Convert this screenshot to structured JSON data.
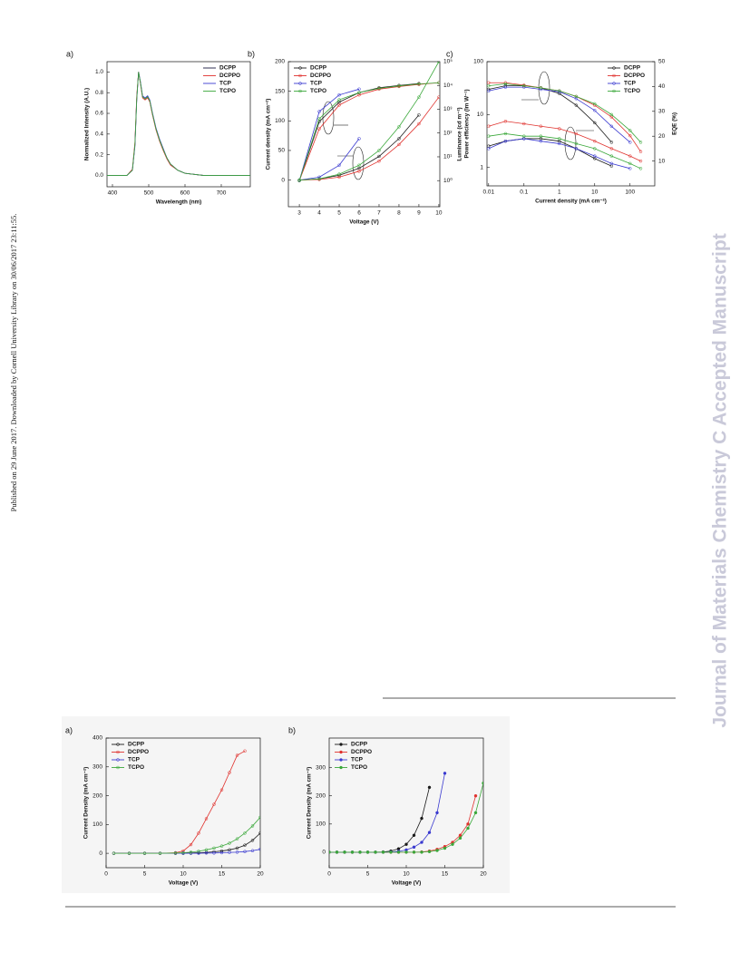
{
  "side_note": "Published on 29 June 2017. Downloaded by Cornell University Library on 30/06/2017 23:11:55.",
  "watermark": "Journal of Materials Chemistry C Accepted Manuscript",
  "chart_data": [
    {
      "type": "line",
      "label": "a)",
      "xlabel": "Wavelength (nm)",
      "ylabel": "Normalized Intensity (A.U.)",
      "xlim": [
        385,
        780
      ],
      "xticks": [
        400,
        500,
        600,
        700
      ],
      "ylim": [
        -0.11,
        1.1
      ],
      "yticks": [
        {
          "value": 0,
          "label": "0.0"
        },
        0.2,
        0.4,
        0.6,
        0.8,
        {
          "value": 1,
          "label": "1.0"
        }
      ],
      "marker": "none",
      "legend": "upper right",
      "x": [
        385,
        440,
        455,
        462,
        467,
        472,
        477,
        483,
        490,
        497,
        503,
        510,
        520,
        530,
        540,
        550,
        560,
        580,
        600,
        650,
        700,
        780
      ],
      "series": [
        {
          "name": "DCPP",
          "color": "#1a1a40",
          "values": [
            0,
            0,
            0.05,
            0.3,
            0.75,
            1.0,
            0.9,
            0.76,
            0.74,
            0.76,
            0.72,
            0.6,
            0.45,
            0.34,
            0.25,
            0.17,
            0.11,
            0.05,
            0.02,
            0,
            0,
            0
          ]
        },
        {
          "name": "DCPPO",
          "color": "#e0322e",
          "values": [
            0,
            0,
            0.06,
            0.32,
            0.77,
            1.0,
            0.89,
            0.75,
            0.73,
            0.75,
            0.71,
            0.59,
            0.44,
            0.33,
            0.24,
            0.16,
            0.1,
            0.05,
            0.02,
            0,
            0,
            0
          ]
        },
        {
          "name": "TCP",
          "color": "#3a3ad0",
          "values": [
            0,
            0,
            0.05,
            0.28,
            0.73,
            1.0,
            0.91,
            0.77,
            0.75,
            0.77,
            0.73,
            0.61,
            0.46,
            0.35,
            0.26,
            0.17,
            0.11,
            0.05,
            0.02,
            0,
            0,
            0
          ]
        },
        {
          "name": "TCPO",
          "color": "#3aa83a",
          "values": [
            0,
            0,
            0.05,
            0.3,
            0.74,
            1.0,
            0.9,
            0.76,
            0.74,
            0.76,
            0.72,
            0.6,
            0.45,
            0.34,
            0.25,
            0.17,
            0.11,
            0.05,
            0.02,
            0,
            0,
            0
          ]
        }
      ]
    },
    {
      "type": "line",
      "label": "b)",
      "xlabel": "Voltage (V)",
      "ylabel": "Current density (mA cm⁻²)",
      "y2label": "Luminance (cd m⁻²)",
      "xlim": [
        2.45,
        10.05
      ],
      "xticks": [
        3,
        4,
        5,
        6,
        7,
        8,
        9,
        10
      ],
      "ylim": [
        -45,
        200
      ],
      "yticks": [
        0,
        50,
        100,
        150,
        200
      ],
      "y2lim": [
        0.08,
        100000
      ],
      "y2scale": "log",
      "y2ticks": [
        {
          "value": 1,
          "label": "10⁰"
        },
        {
          "value": 10,
          "label": "10¹"
        },
        {
          "value": 100,
          "label": "10²"
        },
        {
          "value": 1000,
          "label": "10³"
        },
        {
          "value": 10000,
          "label": "10⁴"
        },
        {
          "value": 100000,
          "label": "10⁵"
        }
      ],
      "marker": "open",
      "legend": "upper left",
      "x": [
        3,
        4,
        5,
        6,
        7,
        8,
        9,
        10
      ],
      "series": [
        {
          "name": "DCPP",
          "color": "#1a1a1a",
          "values": [
            0,
            2,
            8,
            20,
            40,
            70,
            110,
            null
          ],
          "y2_values": [
            1,
            300,
            2000,
            5000,
            8000,
            10000,
            12000,
            null
          ]
        },
        {
          "name": "DCPPO",
          "color": "#e0322e",
          "values": [
            0,
            1,
            5,
            15,
            32,
            60,
            95,
            140
          ],
          "y2_values": [
            1,
            150,
            1500,
            4000,
            7000,
            9000,
            11000,
            13000
          ]
        },
        {
          "name": "TCP",
          "color": "#3a3ad0",
          "values": [
            0,
            5,
            25,
            70,
            null,
            null,
            null,
            null
          ],
          "y2_values": [
            1,
            800,
            4000,
            7000,
            null,
            null,
            null,
            null
          ]
        },
        {
          "name": "TCPO",
          "color": "#3aa83a",
          "values": [
            0,
            2,
            10,
            25,
            50,
            90,
            140,
            200
          ],
          "y2_values": [
            1,
            400,
            2500,
            5000,
            7500,
            9500,
            11500,
            13000
          ]
        }
      ]
    },
    {
      "type": "line",
      "label": "c)",
      "xlabel": "Current density (mA cm⁻²)",
      "ylabel": "Power efficiency (lm W⁻¹)",
      "y2label": "EQE (%)",
      "xscale": "log",
      "xlim": [
        0.009,
        500
      ],
      "xticks": [
        0.01,
        0.1,
        1,
        10,
        100
      ],
      "yscale": "log",
      "ylim": [
        0.45,
        100
      ],
      "yticks": [
        1,
        10,
        100
      ],
      "y2lim": [
        0,
        50
      ],
      "y2ticks": [
        10,
        20,
        30,
        40,
        50
      ],
      "marker": "open",
      "legend": "upper right",
      "x": [
        0.01,
        0.03,
        0.1,
        0.3,
        1,
        3,
        10,
        30,
        100,
        200
      ],
      "series": [
        {
          "name": "DCPP",
          "color": "#1a1a1a",
          "values": [
            30,
            35,
            35,
            32,
            25,
            15,
            7,
            3,
            null,
            null
          ],
          "y2_values": [
            16,
            18,
            19,
            19,
            18,
            15,
            11,
            8,
            null,
            null
          ]
        },
        {
          "name": "DCPPO",
          "color": "#e0322e",
          "values": [
            40,
            40,
            36,
            32,
            28,
            22,
            15,
            9,
            4,
            2
          ],
          "y2_values": [
            24,
            26,
            25,
            24,
            23,
            21,
            18,
            15,
            12,
            10
          ]
        },
        {
          "name": "TCP",
          "color": "#3a3ad0",
          "values": [
            28,
            33,
            33,
            30,
            27,
            20,
            12,
            6,
            3,
            null
          ],
          "y2_values": [
            15,
            18,
            19,
            18,
            17,
            15,
            12,
            9,
            7,
            null
          ]
        },
        {
          "name": "TCPO",
          "color": "#3aa83a",
          "values": [
            35,
            38,
            35,
            32,
            28,
            22,
            16,
            10,
            5,
            3
          ],
          "y2_values": [
            20,
            21,
            20,
            20,
            19,
            17,
            15,
            12,
            9,
            7
          ]
        }
      ]
    },
    {
      "type": "line",
      "label": "a)",
      "xlabel": "Voltage (V)",
      "ylabel": "Current Density (mA cm⁻²)",
      "xlim": [
        0,
        20
      ],
      "xticks": [
        0,
        5,
        10,
        15,
        20
      ],
      "ylim": [
        -50,
        400
      ],
      "yticks": [
        0,
        100,
        200,
        300,
        400
      ],
      "marker": "open",
      "legend": "upper left",
      "x": [
        1,
        3,
        5,
        7,
        9,
        10,
        11,
        12,
        13,
        14,
        15,
        16,
        17,
        18,
        19,
        20
      ],
      "series": [
        {
          "name": "DCPP",
          "color": "#1a1a1a",
          "values": [
            0,
            0,
            0,
            0,
            0,
            0,
            1,
            2,
            3,
            5,
            8,
            12,
            18,
            28,
            45,
            70
          ]
        },
        {
          "name": "DCPPO",
          "color": "#e0322e",
          "values": [
            0,
            0,
            0,
            0,
            2,
            8,
            30,
            70,
            120,
            170,
            220,
            280,
            340,
            355,
            null,
            null
          ]
        },
        {
          "name": "TCP",
          "color": "#3a3ad0",
          "values": [
            0,
            0,
            0,
            0,
            0,
            0,
            0,
            0,
            1,
            1,
            2,
            3,
            4,
            6,
            9,
            14
          ]
        },
        {
          "name": "TCPO",
          "color": "#3aa83a",
          "values": [
            0,
            0,
            0,
            0,
            1,
            2,
            4,
            7,
            12,
            18,
            25,
            35,
            50,
            70,
            95,
            125
          ]
        }
      ]
    },
    {
      "type": "line",
      "label": "b)",
      "xlabel": "Voltage (V)",
      "ylabel": "Current Density (mA cm⁻²)",
      "xlim": [
        0,
        20
      ],
      "xticks": [
        0,
        5,
        10,
        15,
        20
      ],
      "ylim": [
        -55,
        405
      ],
      "yticks": [
        0,
        100,
        200,
        300
      ],
      "marker": "filled",
      "legend": "upper left",
      "x": [
        0,
        1,
        2,
        3,
        4,
        5,
        6,
        7,
        8,
        9,
        10,
        11,
        12,
        13,
        14,
        15,
        16,
        17,
        18,
        19,
        20
      ],
      "series": [
        {
          "name": "DCPP",
          "color": "#1a1a1a",
          "values": [
            0,
            0,
            0,
            0,
            0,
            0,
            0,
            1,
            4,
            12,
            28,
            60,
            120,
            230,
            null,
            null,
            null,
            null,
            null,
            null,
            null
          ]
        },
        {
          "name": "DCPPO",
          "color": "#e0322e",
          "values": [
            0,
            0,
            0,
            0,
            0,
            0,
            0,
            0,
            0,
            0,
            0,
            0,
            1,
            4,
            10,
            20,
            35,
            60,
            100,
            200,
            null
          ]
        },
        {
          "name": "TCP",
          "color": "#3a3ad0",
          "values": [
            0,
            0,
            0,
            0,
            0,
            0,
            0,
            0,
            1,
            3,
            8,
            18,
            35,
            70,
            140,
            280,
            null,
            null,
            null,
            null,
            null
          ]
        },
        {
          "name": "TCPO",
          "color": "#3aa83a",
          "values": [
            0,
            0,
            0,
            0,
            0,
            0,
            0,
            0,
            0,
            0,
            0,
            0,
            0,
            2,
            6,
            14,
            28,
            50,
            85,
            140,
            245
          ]
        }
      ]
    }
  ]
}
